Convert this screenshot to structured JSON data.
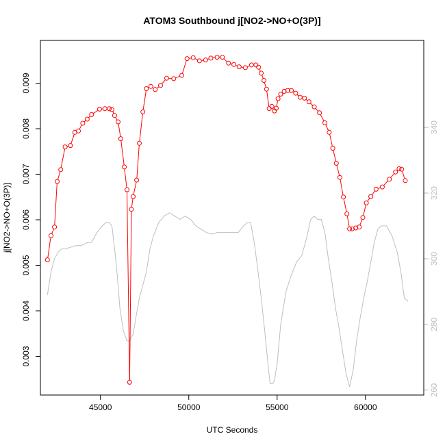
{
  "chart_data": {
    "type": "line",
    "title": "ATOM3 Southbound j[NO2->NO+O(3P)]",
    "xlabel": "UTC Seconds",
    "ylabel": "j[NO2->NO+O(3P)]",
    "xlim": [
      41600,
      63300
    ],
    "ylim": [
      0.00215,
      0.00994
    ],
    "y2lim": [
      258.5,
      366.5
    ],
    "x_ticks": [
      45000,
      50000,
      55000,
      60000
    ],
    "x_tick_labels": [
      "45000",
      "50000",
      "55000",
      "60000"
    ],
    "y_ticks": [
      0.003,
      0.004,
      0.005,
      0.006,
      0.007,
      0.008,
      0.009
    ],
    "y_tick_labels": [
      "0.003",
      "0.004",
      "0.005",
      "0.006",
      "0.007",
      "0.008",
      "0.009"
    ],
    "y2_ticks": [
      260,
      280,
      300,
      320,
      340
    ],
    "y2_tick_labels": [
      "260",
      "280",
      "300",
      "320",
      "340"
    ],
    "colors": {
      "primary": "#ff0000",
      "secondary": "#bebebe"
    },
    "series": [
      {
        "axis": "left",
        "style": "line+points",
        "color": "#ff0000",
        "x": [
          42000,
          42200,
          42400,
          42550,
          42750,
          43000,
          43300,
          43550,
          43750,
          44000,
          44250,
          44500,
          44950,
          45250,
          45500,
          45650,
          45800,
          46000,
          46150,
          46350,
          46500,
          46650,
          46750,
          46850,
          47050,
          47200,
          47400,
          47600,
          47850,
          48100,
          48400,
          48750,
          49150,
          49600,
          49900,
          50250,
          50600,
          50950,
          51250,
          51600,
          51900,
          52250,
          52550,
          52850,
          53200,
          53550,
          53800,
          53950,
          54100,
          54250,
          54400,
          54550,
          54700,
          54850,
          54950,
          55050,
          55200,
          55400,
          55600,
          55800,
          56050,
          56300,
          56550,
          56800,
          57100,
          57400,
          57700,
          57950,
          58150,
          58350,
          58550,
          58750,
          58950,
          59100,
          59250,
          59450,
          59650,
          59850,
          60050,
          60300,
          60600,
          60950,
          61350,
          61700,
          61900,
          62050,
          62250
        ],
        "y": [
          0.00512,
          0.00565,
          0.00584,
          0.00684,
          0.0071,
          0.0076,
          0.00763,
          0.00792,
          0.00795,
          0.00812,
          0.00821,
          0.00831,
          0.00843,
          0.00844,
          0.00844,
          0.00842,
          0.00829,
          0.00815,
          0.00778,
          0.00716,
          0.00666,
          0.00243,
          0.00623,
          0.00651,
          0.00687,
          0.00768,
          0.00837,
          0.00888,
          0.00893,
          0.00886,
          0.00895,
          0.00911,
          0.0091,
          0.00917,
          0.00954,
          0.00956,
          0.00949,
          0.00951,
          0.00955,
          0.00957,
          0.00957,
          0.00944,
          0.00941,
          0.00936,
          0.00934,
          0.0094,
          0.0094,
          0.00935,
          0.00922,
          0.00906,
          0.00887,
          0.00844,
          0.00849,
          0.00839,
          0.00845,
          0.00866,
          0.00876,
          0.00882,
          0.00884,
          0.00884,
          0.00878,
          0.00869,
          0.00867,
          0.00859,
          0.00848,
          0.00835,
          0.00813,
          0.00792,
          0.00757,
          0.00724,
          0.00693,
          0.0065,
          0.00613,
          0.0058,
          0.0058,
          0.00582,
          0.00584,
          0.00605,
          0.00637,
          0.00651,
          0.00667,
          0.00672,
          0.00689,
          0.00705,
          0.00712,
          0.00711,
          0.00686
        ]
      },
      {
        "axis": "right",
        "style": "line",
        "color": "#bebebe",
        "x": [
          42000,
          42200,
          42400,
          42600,
          42800,
          43000,
          43300,
          43600,
          43900,
          44100,
          44300,
          44500,
          44800,
          45100,
          45300,
          45500,
          45650,
          45800,
          45950,
          46100,
          46300,
          46500,
          46650,
          46850,
          47000,
          47200,
          47400,
          47600,
          47800,
          48000,
          48300,
          48600,
          48900,
          49200,
          49500,
          49800,
          50100,
          50400,
          50700,
          51000,
          51300,
          51600,
          51900,
          52200,
          52500,
          52800,
          53100,
          53300,
          53500,
          53700,
          53900,
          54100,
          54300,
          54500,
          54600,
          54750,
          54850,
          55000,
          55200,
          55500,
          55800,
          56100,
          56400,
          56700,
          56900,
          57100,
          57300,
          57500,
          57700,
          57900,
          58100,
          58300,
          58500,
          58700,
          58900,
          59100,
          59300,
          59500,
          59700,
          59900,
          60100,
          60300,
          60500,
          60700,
          60900,
          61200,
          61500,
          61800,
          62000,
          62200,
          62400
        ],
        "y": [
          289,
          296,
          300,
          302,
          303,
          303,
          303.5,
          304,
          304,
          304.5,
          305,
          305,
          308,
          310,
          311,
          311,
          310,
          303,
          295,
          285,
          278,
          275,
          275,
          277,
          282,
          288,
          292,
          296,
          303,
          307,
          311,
          313,
          314,
          313,
          312,
          313,
          312,
          310,
          309,
          308,
          307.5,
          308,
          308,
          308,
          308,
          308,
          310,
          311,
          311,
          305,
          297,
          288,
          278,
          267,
          262,
          262,
          263,
          268,
          280,
          290,
          295,
          299,
          301,
          307,
          312,
          313,
          312,
          312,
          308,
          300,
          293,
          285,
          279,
          272,
          265,
          261,
          266,
          275,
          282,
          288,
          293,
          299,
          305,
          309,
          310,
          310,
          307,
          302,
          296,
          288,
          287
        ]
      }
    ]
  }
}
